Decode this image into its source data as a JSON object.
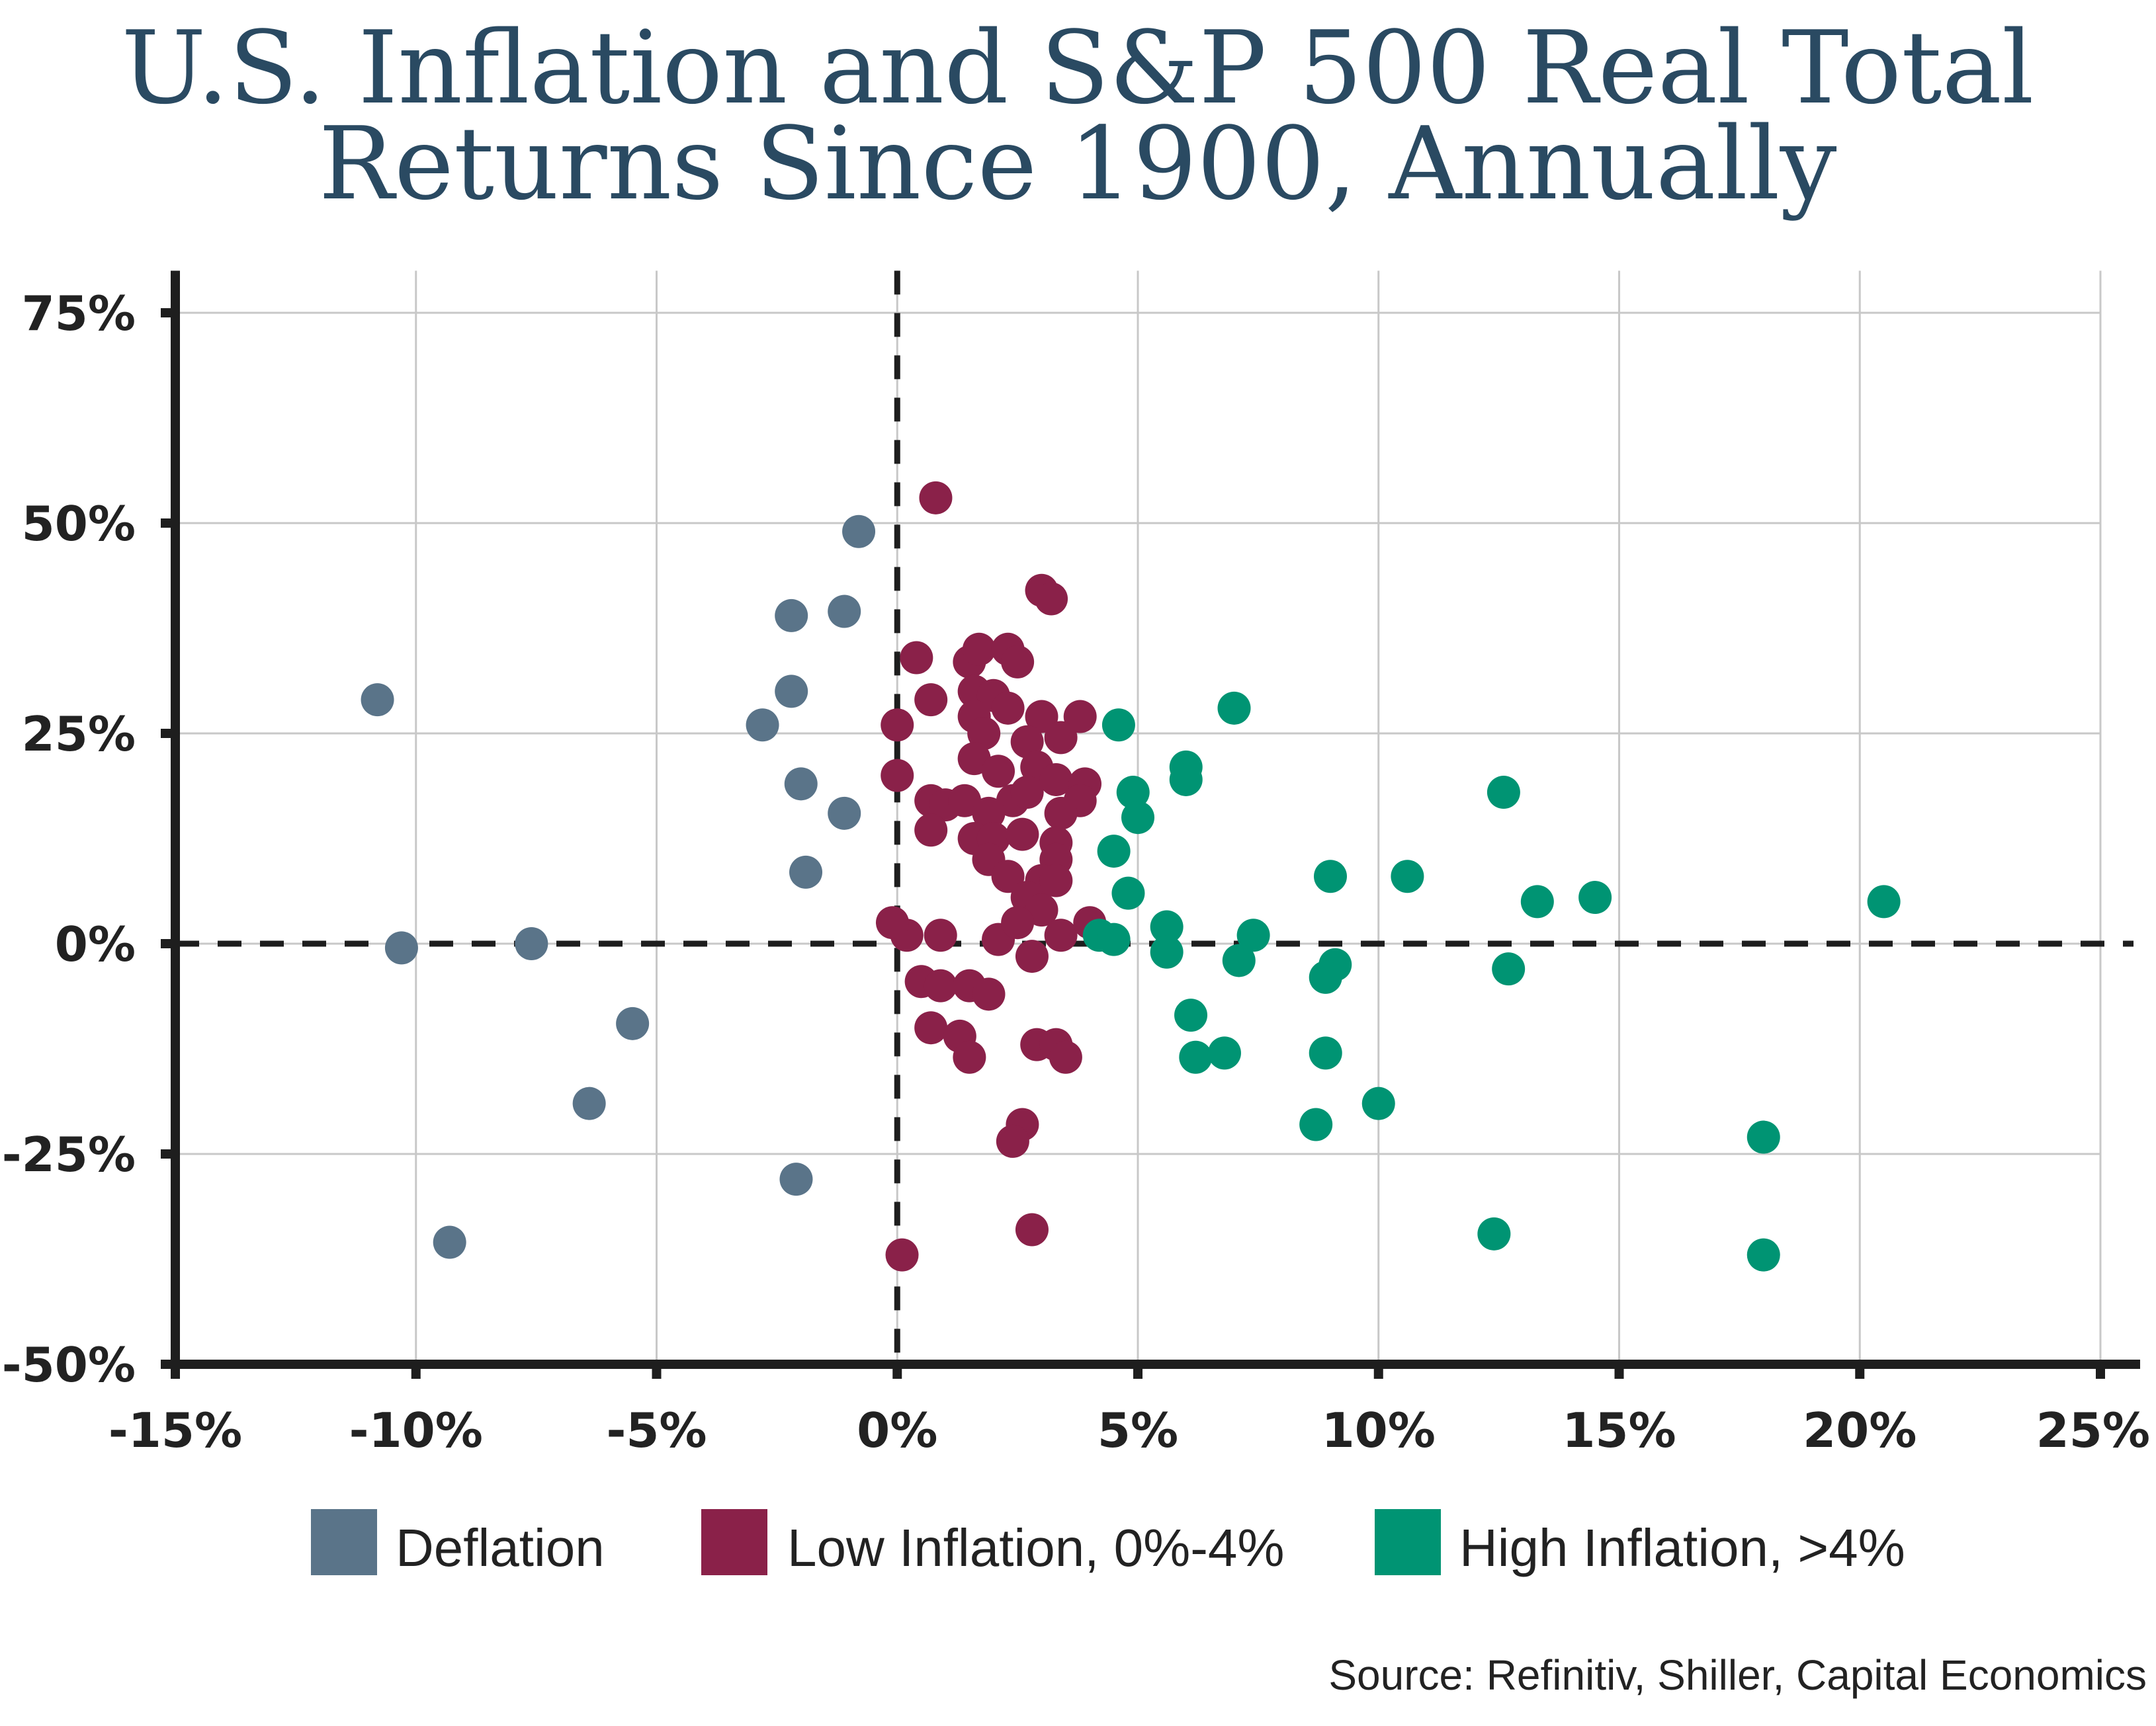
{
  "chart_data": {
    "type": "scatter",
    "title_lines": [
      "U.S. Inflation and S&P 500 Real Total",
      "Returns Since 1900, Annually"
    ],
    "xlabel": "",
    "ylabel": "",
    "xlim": [
      -15,
      25
    ],
    "ylim": [
      -50,
      80
    ],
    "x_ticks": [
      -15,
      -10,
      -5,
      0,
      5,
      10,
      15,
      20,
      25
    ],
    "x_tick_labels": [
      "-15%",
      "-10%",
      "-5%",
      "0%",
      "5%",
      "10%",
      "15%",
      "20%",
      "25%"
    ],
    "y_ticks": [
      -50,
      -25,
      0,
      25,
      50,
      75
    ],
    "y_tick_labels": [
      "-50%",
      "-25%",
      "0%",
      "25%",
      "50%",
      "75%"
    ],
    "grid": true,
    "reference_lines": [
      {
        "axis": "x",
        "value": 0,
        "style": "dashed"
      },
      {
        "axis": "y",
        "value": 0,
        "style": "dashed"
      }
    ],
    "legend_position": "bottom",
    "series": [
      {
        "name": "Deflation",
        "color": "#5a7489",
        "points": [
          [
            -10.8,
            29
          ],
          [
            -10.3,
            -0.5
          ],
          [
            -9.3,
            -35.5
          ],
          [
            -7.6,
            0
          ],
          [
            -6.4,
            -19
          ],
          [
            -5.5,
            -9.5
          ],
          [
            -2.8,
            26
          ],
          [
            -2.2,
            39
          ],
          [
            -2.2,
            30
          ],
          [
            -2.1,
            -28
          ],
          [
            -2.0,
            19
          ],
          [
            -1.9,
            8.5
          ],
          [
            -1.1,
            39.5
          ],
          [
            -1.1,
            15.5
          ],
          [
            -0.8,
            49
          ]
        ]
      },
      {
        "name": "Low Inflation, 0%-4%",
        "color": "#8a2149",
        "points": [
          [
            0.8,
            53
          ],
          [
            3.0,
            42
          ],
          [
            3.2,
            41
          ],
          [
            0.4,
            34
          ],
          [
            1.5,
            33.5
          ],
          [
            1.7,
            35
          ],
          [
            2.3,
            35
          ],
          [
            2.5,
            33.5
          ],
          [
            0.7,
            29
          ],
          [
            1.6,
            30
          ],
          [
            2.0,
            29.5
          ],
          [
            2.3,
            28
          ],
          [
            1.6,
            27
          ],
          [
            3.0,
            27
          ],
          [
            3.8,
            27
          ],
          [
            0,
            26
          ],
          [
            1.8,
            25
          ],
          [
            2.7,
            24
          ],
          [
            3.4,
            24.5
          ],
          [
            1.6,
            22
          ],
          [
            2.1,
            20.5
          ],
          [
            2.9,
            21
          ],
          [
            3.3,
            19.5
          ],
          [
            0,
            20
          ],
          [
            3.9,
            19
          ],
          [
            0.7,
            17
          ],
          [
            1.0,
            16.5
          ],
          [
            1.4,
            17
          ],
          [
            2.4,
            17
          ],
          [
            2.7,
            18
          ],
          [
            3.8,
            17
          ],
          [
            1.9,
            15.5
          ],
          [
            3.4,
            15.5
          ],
          [
            0.7,
            13.5
          ],
          [
            1.6,
            12.5
          ],
          [
            2.0,
            12.5
          ],
          [
            2.6,
            13
          ],
          [
            3.3,
            12
          ],
          [
            1.9,
            10
          ],
          [
            3.3,
            10
          ],
          [
            2.3,
            8
          ],
          [
            3.0,
            7.5
          ],
          [
            3.3,
            7.5
          ],
          [
            2.7,
            5.5
          ],
          [
            3.0,
            4
          ],
          [
            0.9,
            1
          ],
          [
            2.1,
            0.5
          ],
          [
            2.5,
            2.5
          ],
          [
            3.4,
            1
          ],
          [
            0.2,
            1
          ],
          [
            -0.1,
            2.5
          ],
          [
            4.0,
            2.5
          ],
          [
            2.8,
            -1.5
          ],
          [
            0.5,
            -4.5
          ],
          [
            0.9,
            -5
          ],
          [
            1.5,
            -5
          ],
          [
            1.9,
            -6
          ],
          [
            0.7,
            -10
          ],
          [
            1.3,
            -11
          ],
          [
            1.5,
            -13.5
          ],
          [
            2.9,
            -12
          ],
          [
            3.3,
            -12
          ],
          [
            3.5,
            -13.5
          ],
          [
            2.6,
            -21.5
          ],
          [
            2.4,
            -23.5
          ],
          [
            2.8,
            -34
          ],
          [
            0.1,
            -37
          ]
        ]
      },
      {
        "name": "High Inflation, >4%",
        "color": "#009473",
        "points": [
          [
            7.0,
            28
          ],
          [
            4.6,
            26
          ],
          [
            6.0,
            21
          ],
          [
            6.0,
            19.5
          ],
          [
            12.6,
            18
          ],
          [
            4.9,
            18
          ],
          [
            5.0,
            15
          ],
          [
            4.5,
            11
          ],
          [
            9.0,
            8
          ],
          [
            10.6,
            8
          ],
          [
            4.8,
            6
          ],
          [
            13.3,
            5
          ],
          [
            14.5,
            5.5
          ],
          [
            20.5,
            5
          ],
          [
            5.6,
            2
          ],
          [
            7.4,
            1
          ],
          [
            4.2,
            1
          ],
          [
            4.5,
            0.5
          ],
          [
            5.6,
            -1
          ],
          [
            7.1,
            -2
          ],
          [
            9.1,
            -2.5
          ],
          [
            8.9,
            -4
          ],
          [
            12.7,
            -3
          ],
          [
            6.1,
            -8.5
          ],
          [
            6.2,
            -13.5
          ],
          [
            6.8,
            -13
          ],
          [
            8.9,
            -13
          ],
          [
            10.0,
            -19
          ],
          [
            8.7,
            -21.5
          ],
          [
            18.0,
            -23
          ],
          [
            12.4,
            -34.5
          ],
          [
            18.0,
            -37
          ]
        ]
      }
    ]
  },
  "legend": {
    "items": [
      {
        "label": "Deflation",
        "color": "#5a7489"
      },
      {
        "label": "Low Inflation, 0%-4%",
        "color": "#8a2149"
      },
      {
        "label": "High Inflation, >4%",
        "color": "#009473"
      }
    ]
  },
  "source": "Source: Refinitiv, Shiller, Capital Economics"
}
